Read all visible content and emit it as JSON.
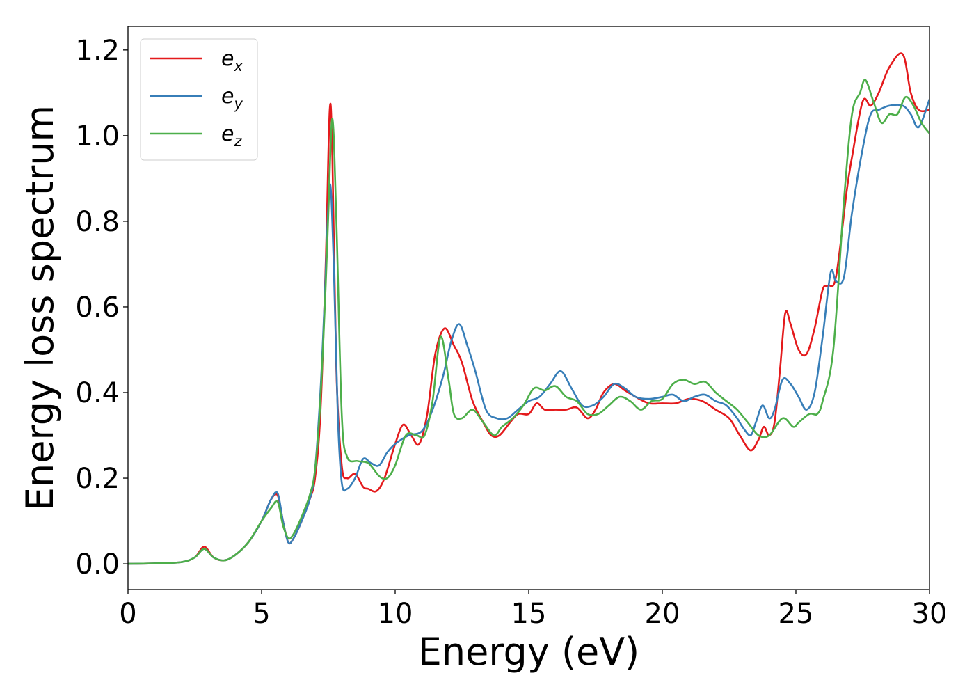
{
  "chart_data": {
    "type": "line",
    "xlabel": "Energy (eV)",
    "ylabel": "Energy loss spectrum",
    "xlim": [
      0,
      30
    ],
    "ylim": [
      -0.06,
      1.255
    ],
    "xticks": [
      0,
      5,
      10,
      15,
      20,
      25,
      30
    ],
    "xtick_labels": [
      "0",
      "5",
      "10",
      "15",
      "20",
      "25",
      "30"
    ],
    "yticks": [
      0.0,
      0.2,
      0.4,
      0.6,
      0.8,
      1.0,
      1.2
    ],
    "ytick_labels": [
      "0.0",
      "0.2",
      "0.4",
      "0.6",
      "0.8",
      "1.0",
      "1.2"
    ],
    "grid": false,
    "legend_position": "top-left",
    "series": [
      {
        "name": "e_x",
        "label_base": "e",
        "label_sub": "x",
        "color": "#e41a1c",
        "x": [
          0,
          1,
          2,
          2.5,
          2.85,
          3.2,
          3.6,
          4.0,
          4.5,
          5.0,
          5.35,
          5.6,
          5.8,
          6.0,
          6.2,
          6.5,
          6.8,
          7.0,
          7.2,
          7.4,
          7.55,
          7.65,
          7.8,
          8.0,
          8.2,
          8.5,
          8.8,
          9.0,
          9.3,
          9.6,
          10.0,
          10.3,
          10.6,
          10.9,
          11.2,
          11.5,
          11.85,
          12.2,
          12.5,
          12.9,
          13.3,
          13.6,
          13.9,
          14.3,
          14.6,
          15.0,
          15.3,
          15.6,
          16.0,
          16.4,
          16.8,
          17.2,
          17.5,
          17.8,
          18.2,
          18.6,
          19.0,
          19.5,
          20.0,
          20.5,
          21.0,
          21.5,
          22.0,
          22.5,
          22.9,
          23.3,
          23.6,
          23.8,
          24.0,
          24.2,
          24.4,
          24.6,
          24.8,
          25.1,
          25.4,
          25.7,
          26.0,
          26.2,
          26.5,
          26.9,
          27.1,
          27.5,
          27.8,
          28.1,
          28.5,
          29.0,
          29.3,
          29.6,
          30.0
        ],
        "y": [
          0,
          0.001,
          0.004,
          0.015,
          0.04,
          0.015,
          0.008,
          0.02,
          0.05,
          0.1,
          0.15,
          0.16,
          0.1,
          0.05,
          0.06,
          0.1,
          0.15,
          0.2,
          0.35,
          0.7,
          1.06,
          0.95,
          0.45,
          0.23,
          0.2,
          0.21,
          0.18,
          0.175,
          0.17,
          0.2,
          0.28,
          0.325,
          0.3,
          0.28,
          0.35,
          0.49,
          0.55,
          0.51,
          0.47,
          0.38,
          0.33,
          0.3,
          0.3,
          0.33,
          0.35,
          0.35,
          0.375,
          0.36,
          0.36,
          0.36,
          0.365,
          0.34,
          0.36,
          0.4,
          0.42,
          0.405,
          0.39,
          0.375,
          0.375,
          0.375,
          0.385,
          0.38,
          0.36,
          0.34,
          0.3,
          0.265,
          0.29,
          0.32,
          0.3,
          0.33,
          0.45,
          0.585,
          0.56,
          0.5,
          0.49,
          0.55,
          0.64,
          0.65,
          0.67,
          0.87,
          0.95,
          1.08,
          1.07,
          1.1,
          1.16,
          1.19,
          1.1,
          1.06,
          1.06
        ]
      },
      {
        "name": "e_y",
        "label_base": "e",
        "label_sub": "y",
        "color": "#377eb8",
        "x": [
          0,
          1,
          2,
          2.5,
          2.85,
          3.2,
          3.6,
          4.0,
          4.5,
          5.0,
          5.35,
          5.6,
          5.8,
          6.0,
          6.2,
          6.5,
          6.8,
          7.0,
          7.2,
          7.35,
          7.55,
          7.7,
          7.85,
          8.0,
          8.2,
          8.5,
          8.8,
          9.1,
          9.4,
          9.7,
          10.0,
          10.5,
          11.0,
          11.4,
          11.8,
          12.1,
          12.4,
          12.7,
          13.0,
          13.4,
          13.8,
          14.2,
          14.6,
          15.0,
          15.4,
          15.8,
          16.2,
          16.6,
          17.0,
          17.4,
          17.8,
          18.2,
          18.6,
          19.0,
          19.5,
          20.0,
          20.4,
          20.8,
          21.2,
          21.6,
          22.0,
          22.4,
          22.8,
          23.0,
          23.3,
          23.5,
          23.75,
          24.0,
          24.2,
          24.5,
          24.8,
          25.1,
          25.4,
          25.7,
          26.0,
          26.3,
          26.5,
          26.8,
          27.1,
          27.5,
          27.8,
          28.1,
          28.5,
          29.0,
          29.3,
          29.6,
          30.0
        ],
        "y": [
          0,
          0.001,
          0.004,
          0.015,
          0.035,
          0.015,
          0.008,
          0.02,
          0.05,
          0.1,
          0.15,
          0.165,
          0.1,
          0.05,
          0.06,
          0.1,
          0.15,
          0.22,
          0.4,
          0.6,
          0.885,
          0.7,
          0.35,
          0.19,
          0.175,
          0.2,
          0.245,
          0.235,
          0.23,
          0.26,
          0.28,
          0.3,
          0.31,
          0.36,
          0.44,
          0.52,
          0.56,
          0.51,
          0.45,
          0.36,
          0.34,
          0.34,
          0.36,
          0.38,
          0.39,
          0.42,
          0.45,
          0.41,
          0.37,
          0.37,
          0.39,
          0.42,
          0.41,
          0.39,
          0.385,
          0.39,
          0.395,
          0.38,
          0.39,
          0.395,
          0.38,
          0.37,
          0.34,
          0.32,
          0.3,
          0.33,
          0.37,
          0.34,
          0.36,
          0.43,
          0.42,
          0.39,
          0.36,
          0.4,
          0.53,
          0.68,
          0.66,
          0.67,
          0.82,
          0.97,
          1.05,
          1.06,
          1.07,
          1.07,
          1.05,
          1.02,
          1.085
        ]
      },
      {
        "name": "e_z",
        "label_base": "e",
        "label_sub": "z",
        "color": "#4daf4a",
        "x": [
          0,
          1,
          2,
          2.5,
          2.85,
          3.2,
          3.6,
          4.0,
          4.5,
          5.0,
          5.35,
          5.6,
          5.8,
          6.0,
          6.2,
          6.5,
          6.8,
          7.0,
          7.2,
          7.4,
          7.5,
          7.65,
          7.8,
          8.0,
          8.2,
          8.6,
          9.0,
          9.4,
          9.7,
          10.0,
          10.4,
          10.8,
          11.1,
          11.4,
          11.7,
          12.0,
          12.2,
          12.5,
          12.9,
          13.3,
          13.7,
          14.0,
          14.4,
          14.8,
          15.2,
          15.6,
          16.0,
          16.4,
          16.8,
          17.2,
          17.6,
          18.0,
          18.4,
          18.8,
          19.2,
          19.6,
          20.0,
          20.4,
          20.8,
          21.2,
          21.6,
          22.0,
          22.4,
          22.8,
          23.2,
          23.6,
          24.0,
          24.5,
          24.9,
          25.1,
          25.5,
          25.8,
          26.0,
          26.4,
          26.8,
          27.1,
          27.4,
          27.6,
          27.9,
          28.2,
          28.5,
          28.8,
          29.1,
          29.4,
          29.7,
          30.0
        ],
        "y": [
          0,
          0.001,
          0.004,
          0.015,
          0.035,
          0.015,
          0.008,
          0.02,
          0.05,
          0.1,
          0.13,
          0.145,
          0.09,
          0.06,
          0.07,
          0.11,
          0.16,
          0.22,
          0.38,
          0.65,
          0.82,
          1.04,
          0.8,
          0.35,
          0.25,
          0.24,
          0.235,
          0.205,
          0.2,
          0.23,
          0.3,
          0.3,
          0.3,
          0.38,
          0.53,
          0.43,
          0.35,
          0.34,
          0.36,
          0.33,
          0.3,
          0.32,
          0.34,
          0.37,
          0.41,
          0.405,
          0.415,
          0.39,
          0.38,
          0.35,
          0.35,
          0.37,
          0.39,
          0.38,
          0.36,
          0.38,
          0.385,
          0.42,
          0.43,
          0.42,
          0.425,
          0.4,
          0.38,
          0.36,
          0.33,
          0.3,
          0.3,
          0.34,
          0.32,
          0.33,
          0.35,
          0.35,
          0.38,
          0.5,
          0.85,
          1.05,
          1.1,
          1.13,
          1.08,
          1.03,
          1.05,
          1.05,
          1.09,
          1.07,
          1.03,
          1.005
        ]
      }
    ]
  }
}
